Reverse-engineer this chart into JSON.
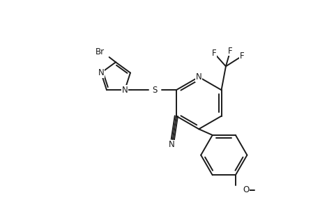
{
  "bg_color": "#ffffff",
  "line_color": "#1a1a1a",
  "line_width": 1.4,
  "font_size": 8.5,
  "figsize": [
    4.6,
    3.0
  ],
  "dpi": 100,
  "xlim": [
    0,
    10
  ],
  "ylim": [
    0,
    7
  ]
}
